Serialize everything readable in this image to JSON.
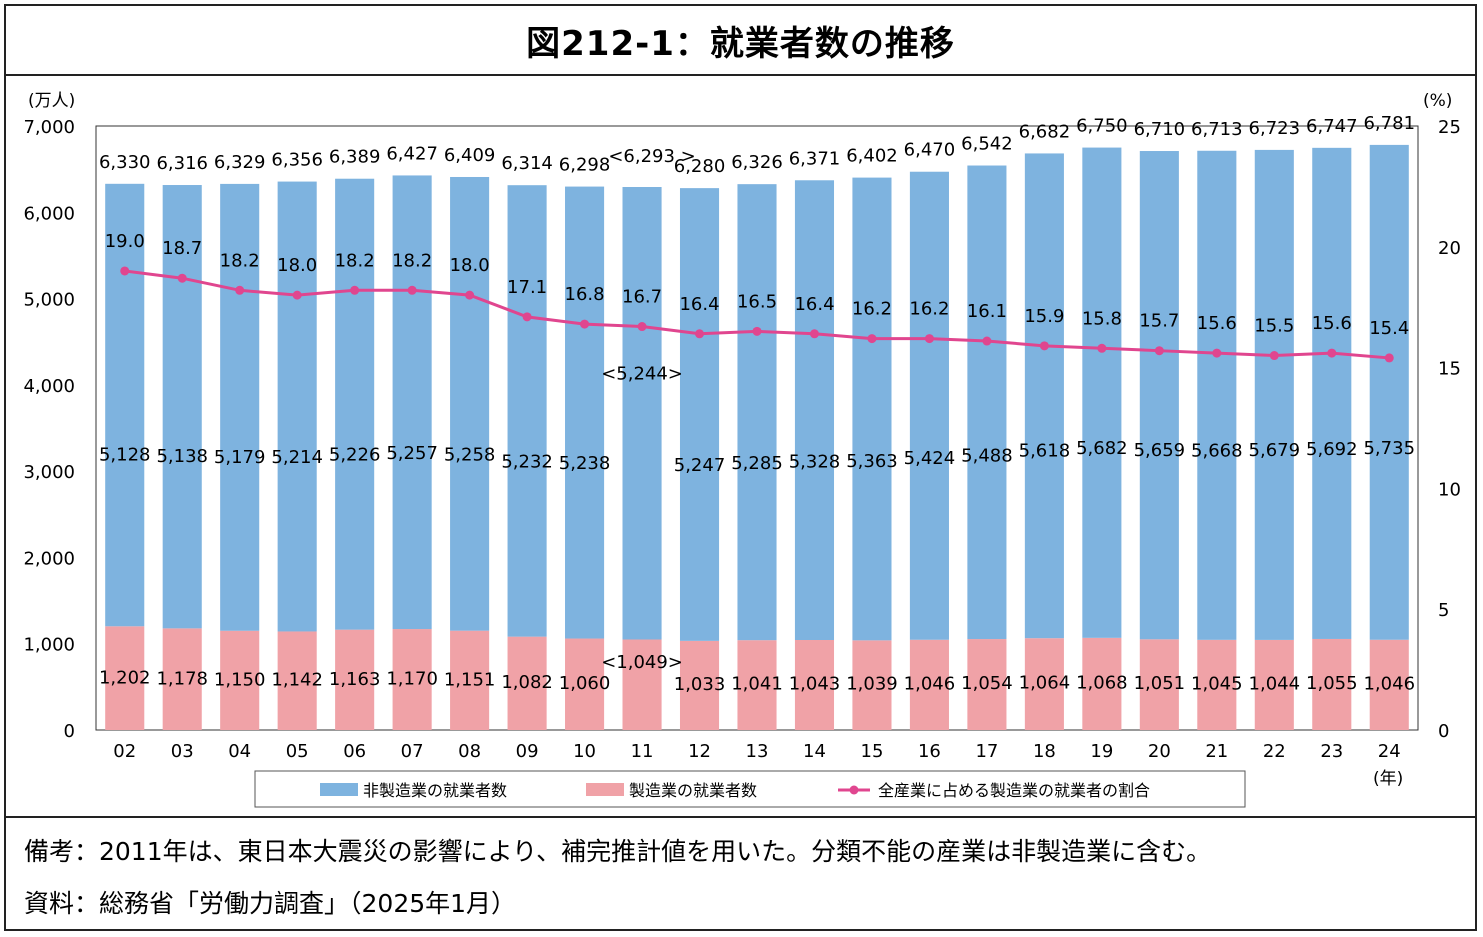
{
  "title": "図212-1：就業者数の推移",
  "notes": {
    "remark": "備考：2011年は、東日本大震災の影響により、補完推計値を用いた。分類不能の産業は非製造業に含む。",
    "source": "資料：総務省「労働力調査」（2025年1月）"
  },
  "chart_data": {
    "type": "bar",
    "stacked": true,
    "title": "就業者数の推移",
    "categories": [
      "02",
      "03",
      "04",
      "05",
      "06",
      "07",
      "08",
      "09",
      "10",
      "11",
      "12",
      "13",
      "14",
      "15",
      "16",
      "17",
      "18",
      "19",
      "20",
      "21",
      "22",
      "23",
      "24"
    ],
    "category_labels": [
      "02",
      "03",
      "04",
      "05",
      "06",
      "07",
      "08",
      "09",
      "10",
      "11",
      "12",
      "13",
      "14",
      "15",
      "16",
      "17",
      "18",
      "19",
      "20",
      "21",
      "22",
      "23",
      "24"
    ],
    "total_labels": [
      "6,330",
      "6,316",
      "6,329",
      "6,356",
      "6,389",
      "6,427",
      "6,409",
      "6,314",
      "6,298",
      "<6,293 >",
      "6,280",
      "6,326",
      "6,371",
      "6,402",
      "6,470",
      "6,542",
      "6,682",
      "6,750",
      "6,710",
      "6,713",
      "6,723",
      "6,747",
      "6,781"
    ],
    "totals": [
      6330,
      6316,
      6329,
      6356,
      6389,
      6427,
      6409,
      6314,
      6298,
      6293,
      6280,
      6326,
      6371,
      6402,
      6470,
      6542,
      6682,
      6750,
      6710,
      6713,
      6723,
      6747,
      6781
    ],
    "series": [
      {
        "name": "非製造業の就業者数",
        "color": "#7eb3df",
        "axis": "left",
        "values": [
          5128,
          5138,
          5179,
          5214,
          5226,
          5257,
          5258,
          5232,
          5238,
          5244,
          5247,
          5285,
          5328,
          5363,
          5424,
          5488,
          5618,
          5682,
          5659,
          5668,
          5679,
          5692,
          5735
        ],
        "labels": [
          "5,128",
          "5,138",
          "5,179",
          "5,214",
          "5,226",
          "5,257",
          "5,258",
          "5,232",
          "5,238",
          "<5,244>",
          "5,247",
          "5,285",
          "5,328",
          "5,363",
          "5,424",
          "5,488",
          "5,618",
          "5,682",
          "5,659",
          "5,668",
          "5,679",
          "5,692",
          "5,735"
        ]
      },
      {
        "name": "製造業の就業者数",
        "color": "#f0a2a7",
        "axis": "left",
        "values": [
          1202,
          1178,
          1150,
          1142,
          1163,
          1170,
          1151,
          1082,
          1060,
          1049,
          1033,
          1041,
          1043,
          1039,
          1046,
          1054,
          1064,
          1068,
          1051,
          1045,
          1044,
          1055,
          1046
        ],
        "labels": [
          "1,202",
          "1,178",
          "1,150",
          "1,142",
          "1,163",
          "1,170",
          "1,151",
          "1,082",
          "1,060",
          "<1,049>",
          "1,033",
          "1,041",
          "1,043",
          "1,039",
          "1,046",
          "1,054",
          "1,064",
          "1,068",
          "1,051",
          "1,045",
          "1,044",
          "1,055",
          "1,046"
        ]
      },
      {
        "name": "全産業に占める製造業の就業者の割合",
        "color": "#e0468f",
        "axis": "right",
        "type": "line",
        "values": [
          19.0,
          18.7,
          18.2,
          18.0,
          18.2,
          18.2,
          18.0,
          17.1,
          16.8,
          16.7,
          16.4,
          16.5,
          16.4,
          16.2,
          16.2,
          16.1,
          15.9,
          15.8,
          15.7,
          15.6,
          15.5,
          15.6,
          15.4
        ],
        "labels": [
          "19.0",
          "18.7",
          "18.2",
          "18.0",
          "18.2",
          "18.2",
          "18.0",
          "17.1",
          "16.8",
          "16.7",
          "16.4",
          "16.5",
          "16.4",
          "16.2",
          "16.2",
          "16.1",
          "15.9",
          "15.8",
          "15.7",
          "15.6",
          "15.5",
          "15.6",
          "15.4"
        ]
      }
    ],
    "y_left": {
      "unit": "(万人)",
      "min": 0,
      "max": 7000,
      "ticks": [
        0,
        1000,
        2000,
        3000,
        4000,
        5000,
        6000,
        7000
      ],
      "tick_labels": [
        "0",
        "1,000",
        "2,000",
        "3,000",
        "4,000",
        "5,000",
        "6,000",
        "7,000"
      ]
    },
    "y_right": {
      "unit": "(%)",
      "min": 0,
      "max": 25,
      "ticks": [
        0,
        5,
        10,
        15,
        20,
        25
      ],
      "tick_labels": [
        "0",
        "5",
        "10",
        "15",
        "20",
        "25"
      ]
    },
    "xlabel": "(年)",
    "legend_position": "bottom"
  }
}
